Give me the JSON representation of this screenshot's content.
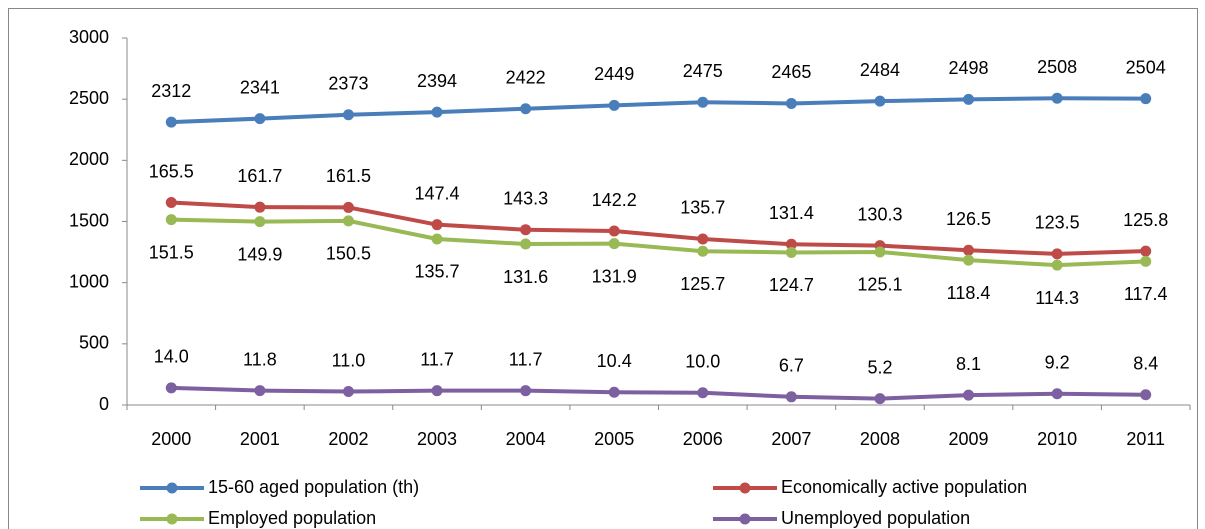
{
  "chart_data": {
    "type": "line",
    "categories": [
      "2000",
      "2001",
      "2002",
      "2003",
      "2004",
      "2005",
      "2006",
      "2007",
      "2008",
      "2009",
      "2010",
      "2011"
    ],
    "ylim": [
      0,
      3000
    ],
    "yticks": [
      0,
      500,
      1000,
      1500,
      2000,
      2500,
      3000
    ],
    "grid": false,
    "legend": "bottom",
    "series": [
      {
        "name": "15-60 aged population (th)",
        "color": "#4a7ebb",
        "label_position": "above",
        "values": [
          2312,
          2341,
          2373,
          2394,
          2422,
          2449,
          2475,
          2465,
          2484,
          2498,
          2508,
          2504
        ]
      },
      {
        "name": "Economically active population",
        "color": "#be4b48",
        "label_position": "above",
        "values": [
          1655,
          1617,
          1615,
          1474,
          1433,
          1422,
          1357,
          1314,
          1303,
          1265,
          1235,
          1258
        ],
        "value_labels": [
          "165.5",
          "161.7",
          "161.5",
          "147.4",
          "143.3",
          "142.2",
          "135.7",
          "131.4",
          "130.3",
          "126.5",
          "123.5",
          "125.8"
        ]
      },
      {
        "name": "Employed population",
        "color": "#98b954",
        "label_position": "below",
        "values": [
          1515,
          1499,
          1505,
          1357,
          1316,
          1319,
          1257,
          1247,
          1251,
          1184,
          1143,
          1174
        ],
        "value_labels": [
          "151.5",
          "149.9",
          "150.5",
          "135.7",
          "131.6",
          "131.9",
          "125.7",
          "124.7",
          "125.1",
          "118.4",
          "114.3",
          "117.4"
        ]
      },
      {
        "name": "Unemployed population",
        "color": "#7d60a0",
        "label_position": "above",
        "values": [
          140,
          118,
          110,
          117,
          117,
          104,
          100,
          67,
          52,
          81,
          92,
          84
        ],
        "value_labels": [
          "14.0",
          "11.8",
          "11.0",
          "11.7",
          "11.7",
          "10.4",
          "10.0",
          "6.7",
          "5.2",
          "8.1",
          "9.2",
          "8.4"
        ]
      }
    ]
  }
}
